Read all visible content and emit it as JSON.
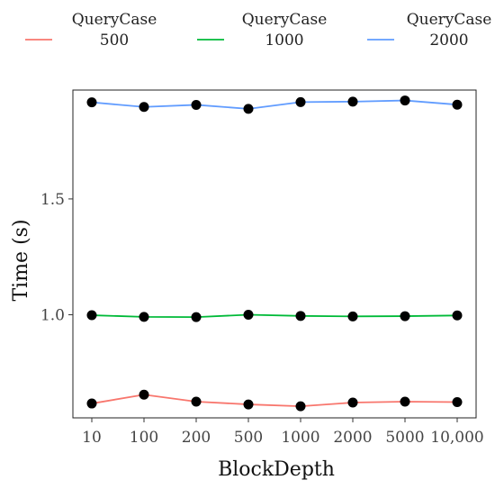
{
  "chart_data": {
    "type": "line",
    "xlabel": "BlockDepth",
    "ylabel": "Time (s)",
    "categories": [
      "10",
      "100",
      "200",
      "500",
      "1000",
      "2000",
      "5000",
      "10,000"
    ],
    "ylim": [
      0.555,
      1.97
    ],
    "yticks": [
      {
        "value": 1.0,
        "label": "1.0"
      },
      {
        "value": 1.5,
        "label": "1.5"
      }
    ],
    "legend": {
      "title": "QueryCase",
      "placement": "top"
    },
    "grid": false,
    "series": [
      {
        "name": "500",
        "color": "#F8766D",
        "values": [
          0.617,
          0.655,
          0.625,
          0.613,
          0.605,
          0.621,
          0.625,
          0.623
        ]
      },
      {
        "name": "1000",
        "color": "#00BA38",
        "values": [
          0.998,
          0.991,
          0.99,
          1.0,
          0.995,
          0.993,
          0.994,
          0.997
        ]
      },
      {
        "name": "2000",
        "color": "#619CFF",
        "values": [
          1.917,
          1.897,
          1.906,
          1.889,
          1.918,
          1.92,
          1.925,
          1.907
        ]
      }
    ]
  }
}
